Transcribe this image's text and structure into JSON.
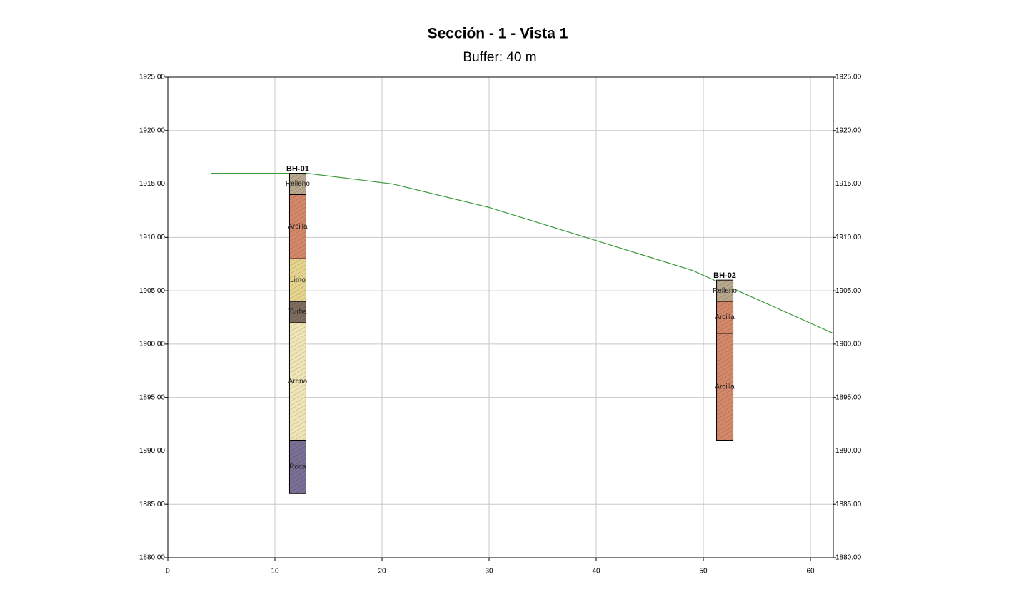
{
  "chart_data": {
    "type": "section",
    "title": "Sección - 1 - Vista 1",
    "subtitle": "Buffer: 40 m",
    "xlim": [
      0,
      62.13
    ],
    "xticks": [
      0,
      10,
      20,
      30,
      40,
      50,
      60
    ],
    "ylim": [
      1880,
      1925
    ],
    "yticks": [
      {
        "value": 1880,
        "label": "1880.00"
      },
      {
        "value": 1885,
        "label": "1885.00"
      },
      {
        "value": 1890,
        "label": "1890.00"
      },
      {
        "value": 1895,
        "label": "1895.00"
      },
      {
        "value": 1900,
        "label": "1900.00"
      },
      {
        "value": 1905,
        "label": "1905.00"
      },
      {
        "value": 1910,
        "label": "1910.00"
      },
      {
        "value": 1915,
        "label": "1915.00"
      },
      {
        "value": 1920,
        "label": "1920.00"
      },
      {
        "value": 1925,
        "label": "1925.00"
      }
    ],
    "grid": true,
    "ground": {
      "color": "#3a9a3a",
      "x": [
        4,
        13,
        21,
        30,
        40,
        49,
        62.13
      ],
      "values": [
        1916,
        1916,
        1915,
        1912.8,
        1909.7,
        1906.9,
        1901
      ]
    },
    "boreholes": [
      {
        "name": "BH-01",
        "x": 12.13,
        "layers": [
          {
            "name": "Relleno",
            "top": 1916,
            "bottom": 1914,
            "color": "#b8a88e"
          },
          {
            "name": "Arcilla",
            "top": 1914,
            "bottom": 1908,
            "color": "#d4886a"
          },
          {
            "name": "Limo",
            "top": 1908,
            "bottom": 1904,
            "color": "#e6d48e"
          },
          {
            "name": "Turba",
            "top": 1904,
            "bottom": 1902,
            "color": "#7d6d60"
          },
          {
            "name": "Arena",
            "top": 1902,
            "bottom": 1891,
            "color": "#efe5b6"
          },
          {
            "name": "Roca",
            "top": 1891,
            "bottom": 1886,
            "color": "#7a6f94"
          }
        ]
      },
      {
        "name": "BH-02",
        "x": 52,
        "layers": [
          {
            "name": "Relleno",
            "top": 1906,
            "bottom": 1904,
            "color": "#b8a88e"
          },
          {
            "name": "Arcilla",
            "top": 1904,
            "bottom": 1901,
            "color": "#d4886a"
          },
          {
            "name": "Arcilla",
            "top": 1901,
            "bottom": 1891,
            "color": "#d4886a"
          }
        ]
      }
    ]
  }
}
